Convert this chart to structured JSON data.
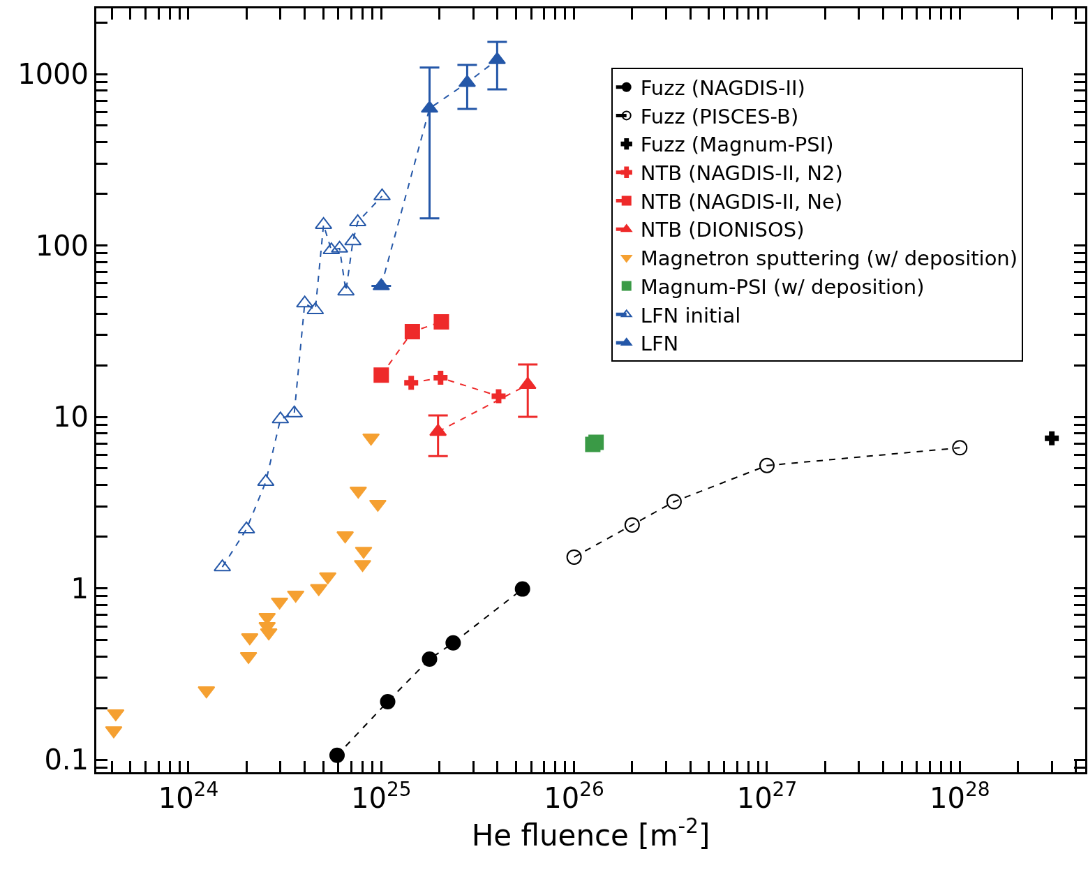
{
  "chart_data": {
    "type": "scatter",
    "xlabel": "He fluence [m$^{-2}$]",
    "log": "xy",
    "legend": "top right",
    "xlim": [
      3.33e+23,
      4.47e+28
    ],
    "ylim": [
      0.0845,
      2415
    ],
    "xticks": [
      {
        "value": 4e+23,
        "label": null
      },
      {
        "value": 5e+23,
        "label": null
      },
      {
        "value": 6e+23,
        "label": null
      },
      {
        "value": 7e+23,
        "label": null
      },
      {
        "value": 8e+23,
        "label": null
      },
      {
        "value": 9e+23,
        "label": null
      },
      {
        "value": 1e+24,
        "label": "10$^{24}$"
      },
      {
        "value": 2e+24,
        "label": null
      },
      {
        "value": 3e+24,
        "label": null
      },
      {
        "value": 4e+24,
        "label": null
      },
      {
        "value": 5e+24,
        "label": null
      },
      {
        "value": 6e+24,
        "label": null
      },
      {
        "value": 7e+24,
        "label": null
      },
      {
        "value": 8e+24,
        "label": null
      },
      {
        "value": 9e+24,
        "label": null
      },
      {
        "value": 1e+25,
        "label": "10$^{25}$"
      },
      {
        "value": 2e+25,
        "label": null
      },
      {
        "value": 3e+25,
        "label": null
      },
      {
        "value": 4e+25,
        "label": null
      },
      {
        "value": 5e+25,
        "label": null
      },
      {
        "value": 6e+25,
        "label": null
      },
      {
        "value": 7e+25,
        "label": null
      },
      {
        "value": 8e+25,
        "label": null
      },
      {
        "value": 9e+25,
        "label": null
      },
      {
        "value": 1e+26,
        "label": "10$^{26}$"
      },
      {
        "value": 2e+26,
        "label": null
      },
      {
        "value": 3e+26,
        "label": null
      },
      {
        "value": 4e+26,
        "label": null
      },
      {
        "value": 5e+26,
        "label": null
      },
      {
        "value": 6e+26,
        "label": null
      },
      {
        "value": 7e+26,
        "label": null
      },
      {
        "value": 8e+26,
        "label": null
      },
      {
        "value": 9e+26,
        "label": null
      },
      {
        "value": 1e+27,
        "label": "10$^{27}$"
      },
      {
        "value": 2e+27,
        "label": null
      },
      {
        "value": 3e+27,
        "label": null
      },
      {
        "value": 4e+27,
        "label": null
      },
      {
        "value": 5e+27,
        "label": null
      },
      {
        "value": 6e+27,
        "label": null
      },
      {
        "value": 7e+27,
        "label": null
      },
      {
        "value": 8e+27,
        "label": null
      },
      {
        "value": 9e+27,
        "label": null
      },
      {
        "value": 1e+28,
        "label": "10$^{28}$"
      },
      {
        "value": 2e+28,
        "label": null
      },
      {
        "value": 3e+28,
        "label": null
      },
      {
        "value": 4e+28,
        "label": null
      }
    ],
    "yticks": [
      {
        "value": 0.09,
        "label": null
      },
      0.1,
      {
        "value": 0.2,
        "label": null
      },
      {
        "value": 0.3,
        "label": null
      },
      {
        "value": 0.4,
        "label": null
      },
      {
        "value": 0.5,
        "label": null
      },
      {
        "value": 0.6,
        "label": null
      },
      {
        "value": 0.7,
        "label": null
      },
      {
        "value": 0.8,
        "label": null
      },
      {
        "value": 0.9,
        "label": null
      },
      1,
      {
        "value": 2,
        "label": null
      },
      {
        "value": 3,
        "label": null
      },
      {
        "value": 4,
        "label": null
      },
      {
        "value": 5,
        "label": null
      },
      {
        "value": 6,
        "label": null
      },
      {
        "value": 7,
        "label": null
      },
      {
        "value": 8,
        "label": null
      },
      {
        "value": 9,
        "label": null
      },
      10,
      {
        "value": 20,
        "label": null
      },
      {
        "value": 30,
        "label": null
      },
      {
        "value": 40,
        "label": null
      },
      {
        "value": 50,
        "label": null
      },
      {
        "value": 60,
        "label": null
      },
      {
        "value": 70,
        "label": null
      },
      {
        "value": 80,
        "label": null
      },
      {
        "value": 90,
        "label": null
      },
      100,
      {
        "value": 200,
        "label": null
      },
      {
        "value": 300,
        "label": null
      },
      {
        "value": 400,
        "label": null
      },
      {
        "value": 500,
        "label": null
      },
      {
        "value": 600,
        "label": null
      },
      {
        "value": 700,
        "label": null
      },
      {
        "value": 800,
        "label": null
      },
      {
        "value": 900,
        "label": null
      },
      1000,
      {
        "value": 2000,
        "label": null
      }
    ],
    "series": [
      {
        "name": "Fuzz (NAGDIS-II)",
        "type": "line",
        "color": "#000000",
        "marker": "circle",
        "line_style": "dashed",
        "x": [
          5.9e+24,
          1.08e+25,
          1.78e+25,
          2.36e+25,
          5.4e+25
        ],
        "values": [
          0.106,
          0.218,
          0.386,
          0.48,
          0.99
        ]
      },
      {
        "name": "Fuzz (PISCES-B)",
        "type": "line",
        "color": "#000000",
        "marker": "circle-open",
        "line_style": "dashed",
        "x": [
          1e+26,
          2e+26,
          3.3e+26,
          1e+27,
          1e+28
        ],
        "values": [
          1.52,
          2.34,
          3.2,
          5.2,
          6.6
        ]
      },
      {
        "name": "Fuzz (Magnum-PSI)",
        "type": "scatter",
        "color": "#000000",
        "marker": "cross",
        "x": [
          3e+28
        ],
        "values": [
          7.5
        ]
      },
      {
        "name": "NTB (NAGDIS-II, N2)",
        "type": "line",
        "color": "#ee2a2a",
        "marker": "cross",
        "line_style": "dashed",
        "x": [
          1.43e+25,
          2.03e+25,
          4.06e+25
        ],
        "values": [
          15.8,
          16.9,
          13.2
        ]
      },
      {
        "name": "NTB (NAGDIS-II, Ne)",
        "type": "line",
        "color": "#ee2a2a",
        "marker": "square",
        "line_style": "dashed",
        "x": [
          1e+25,
          1.45e+25,
          2.05e+25
        ],
        "values": [
          17.5,
          31.4,
          35.8
        ]
      },
      {
        "name": "NTB (DIONISOS)",
        "type": "line",
        "color": "#ee2a2a",
        "marker": "triangle",
        "line_style": "dashed",
        "x": [
          1.97e+25,
          5.75e+25
        ],
        "values": [
          8.2,
          15.4
        ],
        "errors": [
          [
            5.9,
            10.2
          ],
          [
            10,
            20.2
          ]
        ]
      },
      {
        "name": "Magnetron sputtering (w/ deposition)",
        "type": "scatter",
        "color": "#f5a031",
        "marker": "triangle-down",
        "x": [
          4.2e+23,
          4.1e+23,
          1.24e+24,
          2.05e+24,
          2.08e+24,
          2.56e+24,
          2.56e+24,
          2.61e+24,
          2.97e+24,
          3.6e+24,
          4.74e+24,
          5.28e+24,
          6.5e+24,
          7.6e+24,
          8.1e+24,
          8e+24,
          8.85e+24,
          9.6e+24
        ],
        "values": [
          0.186,
          0.148,
          0.253,
          0.401,
          0.516,
          0.678,
          0.6,
          0.551,
          0.834,
          0.915,
          1.0,
          1.17,
          2.03,
          3.7,
          1.65,
          1.38,
          7.55,
          3.1
        ]
      },
      {
        "name": "Magnum-PSI (w/ deposition)",
        "type": "scatter",
        "color": "#3a9a46",
        "marker": "square",
        "x": [
          1.25e+26,
          1.3e+26
        ],
        "values": [
          6.9,
          7.1
        ]
      },
      {
        "name": "LFN initial",
        "type": "line",
        "color": "#2457a8",
        "marker": "triangle-open",
        "line_style": "dashed",
        "x": [
          1.5e+24,
          2e+24,
          2.52e+24,
          3e+24,
          3.54e+24,
          4.01e+24,
          4.55e+24,
          5.02e+24,
          5.51e+24,
          6.08e+24,
          6.56e+24,
          7.13e+24,
          7.55e+24,
          1.01e+25
        ],
        "values": [
          1.33,
          2.21,
          4.18,
          9.7,
          10.5,
          46,
          42,
          132,
          94,
          96,
          54,
          106,
          137,
          194
        ]
      },
      {
        "name": "LFN",
        "type": "line",
        "color": "#2457a8",
        "marker": "triangle",
        "line_style": "dashed",
        "x": [
          1e+25,
          1.78e+25,
          2.79e+25,
          3.99e+25
        ],
        "values": [
          58,
          630,
          890,
          1210
        ],
        "errors": [
          null,
          [
            144,
            1090
          ],
          [
            626,
            1130
          ],
          [
            813,
            1540
          ]
        ]
      }
    ]
  }
}
